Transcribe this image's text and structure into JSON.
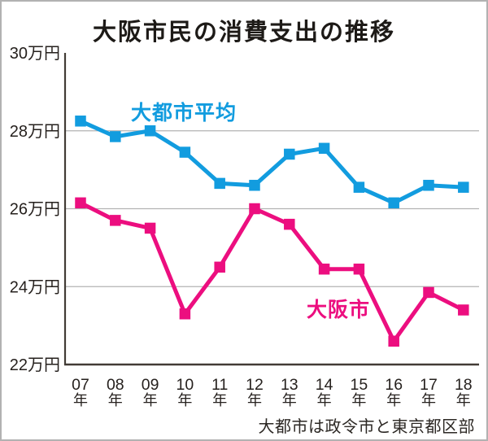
{
  "chart_data": {
    "type": "line",
    "title": "大阪市民の消費支出の推移",
    "unit": "万円",
    "x_labels": [
      "07",
      "08",
      "09",
      "10",
      "11",
      "12",
      "13",
      "14",
      "15",
      "16",
      "17",
      "18"
    ],
    "x_label_suffix": "年",
    "ylim": [
      22,
      30
    ],
    "y_ticks": [
      {
        "value": 30,
        "label": "30万円",
        "grid": false
      },
      {
        "value": 28,
        "label": "28万円",
        "grid": true
      },
      {
        "value": 26,
        "label": "26万円",
        "grid": true
      },
      {
        "value": 24,
        "label": "24万円",
        "grid": true
      },
      {
        "value": 22,
        "label": "22万円",
        "grid": false
      }
    ],
    "series": [
      {
        "key": "large-city-average",
        "name": "大都市平均",
        "color": "#129CDF",
        "values": [
          28.25,
          27.85,
          28.0,
          27.45,
          26.65,
          26.6,
          27.4,
          27.55,
          26.55,
          26.15,
          26.6,
          26.55
        ]
      },
      {
        "key": "osaka-city",
        "name": "大阪市",
        "color": "#EC0E7F",
        "values": [
          26.15,
          25.7,
          25.5,
          23.3,
          24.5,
          26.0,
          25.6,
          24.45,
          24.45,
          22.6,
          23.85,
          23.4
        ]
      }
    ],
    "grid": true,
    "legend_position": "inline-labels",
    "note": "大都市は政令市と東京都区部"
  },
  "colors": {
    "gridline": "#b3b3b3",
    "axis": "#423c36",
    "tick_text": "#26211e"
  }
}
